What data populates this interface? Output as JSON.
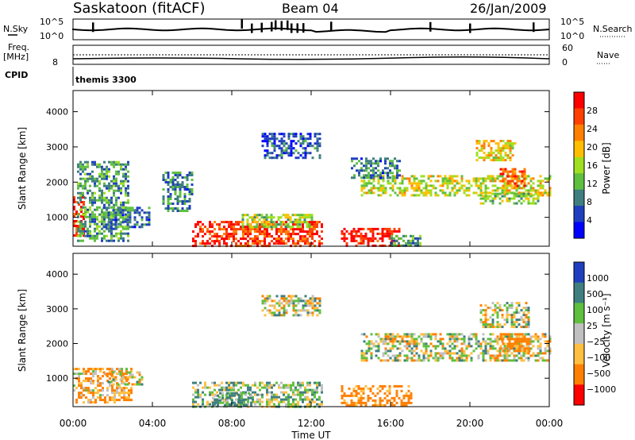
{
  "header": {
    "station": "Saskatoon (fitACF)",
    "beam": "Beam 04",
    "date": "26/Jan/2009"
  },
  "top_panels": {
    "nsky_label": "N.Sky",
    "nsky_ticks": [
      "10^5",
      "10^0"
    ],
    "nsearch_label": "N.Search",
    "freq_label_1": "Freq.",
    "freq_label_2": "[MHz]",
    "freq_tick": "8",
    "nave_label": "Nave",
    "nave_ticks": [
      "60",
      "0"
    ],
    "cpid_label": "CPID",
    "cpid_value": "themis 3300"
  },
  "axes": {
    "ylabel": "Slant Range [km]",
    "y_ticks": [
      "4000",
      "3000",
      "2000",
      "1000"
    ],
    "x_ticks": [
      "00:00",
      "04:00",
      "08:00",
      "12:00",
      "16:00",
      "20:00",
      "00:00"
    ],
    "xlabel": "Time UT"
  },
  "colorbars": {
    "power_label": "Power [dB]",
    "power_ticks": [
      "28",
      "24",
      "20",
      "16",
      "12",
      "8",
      "4"
    ],
    "velocity_label": "Velocity [m s⁻¹]",
    "velocity_ticks": [
      "1000",
      "500",
      "100",
      "25",
      "−25",
      "−100",
      "−500",
      "−1000"
    ]
  },
  "chart_data": [
    {
      "type": "heatmap",
      "name": "power",
      "x_unit": "hours UT",
      "y_unit": "km",
      "xlim": [
        0,
        24
      ],
      "ylim": [
        180,
        4600
      ],
      "value_range": [
        0,
        30
      ],
      "colors": [
        "#0000ff",
        "#1f3fbf",
        "#3f7f7f",
        "#5fbf3f",
        "#9fdf1f",
        "#ffbf00",
        "#ff8000",
        "#ff4000",
        "#ff0000"
      ],
      "regions": [
        {
          "t": [
            0,
            0.5
          ],
          "r": [
            500,
            1600
          ],
          "v": 26
        },
        {
          "t": [
            0.2,
            2.8
          ],
          "r": [
            300,
            2600
          ],
          "v": 10
        },
        {
          "t": [
            1.5,
            3.8
          ],
          "r": [
            700,
            1300
          ],
          "v": 8
        },
        {
          "t": [
            6.0,
            12.6
          ],
          "r": [
            200,
            900
          ],
          "v": 26
        },
        {
          "t": [
            8.5,
            12.0
          ],
          "r": [
            700,
            1100
          ],
          "v": 14
        },
        {
          "t": [
            9.5,
            12.5
          ],
          "r": [
            2700,
            3400
          ],
          "v": 6
        },
        {
          "t": [
            13.5,
            16.5
          ],
          "r": [
            200,
            700
          ],
          "v": 28
        },
        {
          "t": [
            16.0,
            17.5
          ],
          "r": [
            200,
            500
          ],
          "v": 10
        },
        {
          "t": [
            14.5,
            24.0
          ],
          "r": [
            1600,
            2200
          ],
          "v": 16
        },
        {
          "t": [
            14.0,
            16.5
          ],
          "r": [
            2100,
            2700
          ],
          "v": 8
        },
        {
          "t": [
            20.3,
            22.3
          ],
          "r": [
            2600,
            3200
          ],
          "v": 18
        },
        {
          "t": [
            21.5,
            22.8
          ],
          "r": [
            1900,
            2400
          ],
          "v": 24
        },
        {
          "t": [
            20.5,
            23.5
          ],
          "r": [
            1400,
            1700
          ],
          "v": 14
        },
        {
          "t": [
            4.5,
            6.0
          ],
          "r": [
            1200,
            2300
          ],
          "v": 8
        }
      ]
    },
    {
      "type": "heatmap",
      "name": "velocity",
      "x_unit": "hours UT",
      "y_unit": "km",
      "xlim": [
        0,
        24
      ],
      "ylim": [
        180,
        4600
      ],
      "value_range": [
        -1000,
        1000
      ],
      "colors": [
        "#ff0000",
        "#ff8000",
        "#ffbf40",
        "#c0c0c0",
        "#5fbf3f",
        "#3f7f7f",
        "#1f3fbf"
      ],
      "regions": [
        {
          "t": [
            0,
            3.0
          ],
          "r": [
            300,
            1300
          ],
          "v": -100
        },
        {
          "t": [
            1.5,
            3.5
          ],
          "r": [
            800,
            1200
          ],
          "v": 0
        },
        {
          "t": [
            6.0,
            12.6
          ],
          "r": [
            200,
            900
          ],
          "v": 50
        },
        {
          "t": [
            7.0,
            9.0
          ],
          "r": [
            200,
            600
          ],
          "v": 150
        },
        {
          "t": [
            9.5,
            12.5
          ],
          "r": [
            2800,
            3400
          ],
          "v": 0
        },
        {
          "t": [
            13.5,
            17.0
          ],
          "r": [
            200,
            800
          ],
          "v": -200
        },
        {
          "t": [
            14.5,
            24.0
          ],
          "r": [
            1500,
            2300
          ],
          "v": 0
        },
        {
          "t": [
            20.5,
            23.0
          ],
          "r": [
            2500,
            3200
          ],
          "v": 0
        },
        {
          "t": [
            21.5,
            23.0
          ],
          "r": [
            1800,
            2300
          ],
          "v": -200
        }
      ]
    },
    {
      "type": "line",
      "name": "nsky",
      "x_unit": "hours UT",
      "spikes_at": [
        1.0,
        8.5,
        9.0,
        9.5,
        10.0,
        10.2,
        10.5,
        10.8,
        11.0,
        11.3,
        11.6,
        13.0,
        18.0,
        20.0,
        23.2
      ]
    }
  ]
}
